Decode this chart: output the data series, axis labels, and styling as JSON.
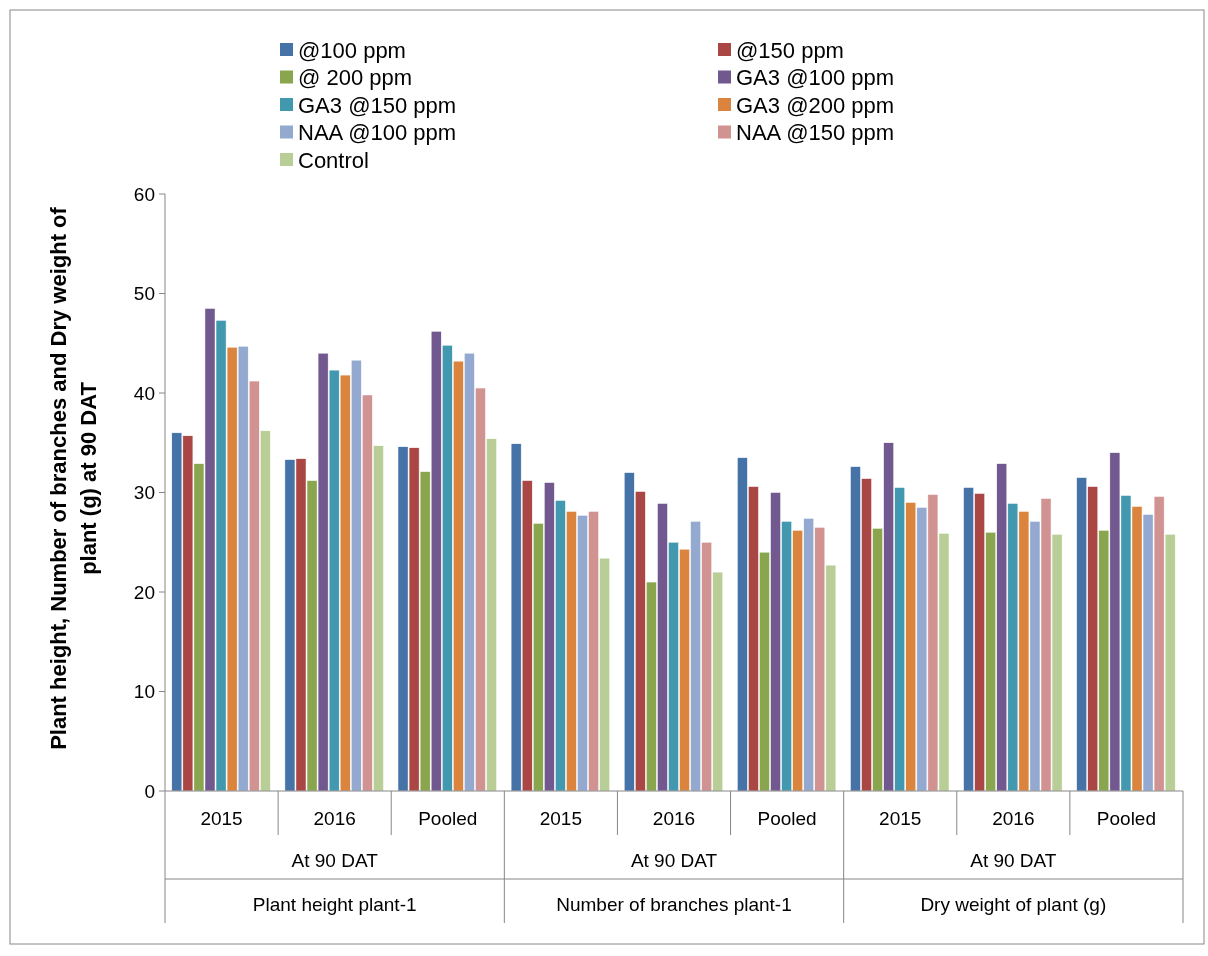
{
  "chart_data": {
    "type": "bar",
    "ylabel": "Plant height, Number of branches and Dry weight of plant (g) at 90 DAT",
    "categories": [
      "2015",
      "2016",
      "Pooled",
      "2015",
      "2016",
      "Pooled",
      "2015",
      "2016",
      "Pooled"
    ],
    "annotations": [
      "At 90 DAT",
      "At 90 DAT",
      "At 90 DAT",
      "Plant height plant-1",
      "Number of branches plant-1",
      "Dry weight of plant (g)"
    ],
    "ylim": [
      0,
      60
    ],
    "yticks": [
      0,
      10,
      20,
      30,
      40,
      50,
      60
    ],
    "legend": "top",
    "grid": false,
    "series": [
      {
        "name": "@100 ppm",
        "color": "#4572a7",
        "values": [
          36.0,
          33.3,
          34.6,
          34.9,
          32.0,
          33.5,
          32.6,
          30.5,
          31.5
        ]
      },
      {
        "name": "@150 ppm",
        "color": "#aa4643",
        "values": [
          35.7,
          33.4,
          34.5,
          31.2,
          30.1,
          30.6,
          31.4,
          29.9,
          30.6
        ]
      },
      {
        "name": "@ 200 ppm",
        "color": "#89a54e",
        "values": [
          32.9,
          31.2,
          32.1,
          26.9,
          21.0,
          24.0,
          26.4,
          26.0,
          26.2
        ]
      },
      {
        "name": "GA3 @100 ppm",
        "color": "#71588f",
        "values": [
          48.5,
          44.0,
          46.2,
          31.0,
          28.9,
          30.0,
          35.0,
          32.9,
          34.0
        ]
      },
      {
        "name": "GA3 @150 ppm",
        "color": "#4198af",
        "values": [
          47.3,
          42.3,
          44.8,
          29.2,
          25.0,
          27.1,
          30.5,
          28.9,
          29.7
        ]
      },
      {
        "name": "GA3 @200 ppm",
        "color": "#db843d",
        "values": [
          44.6,
          41.8,
          43.2,
          28.1,
          24.3,
          26.2,
          29.0,
          28.1,
          28.6
        ]
      },
      {
        "name": "NAA @100 ppm",
        "color": "#93a9cf",
        "values": [
          44.7,
          43.3,
          44.0,
          27.7,
          27.1,
          27.4,
          28.5,
          27.1,
          27.8
        ]
      },
      {
        "name": "NAA @150 ppm",
        "color": "#d19392",
        "values": [
          41.2,
          39.8,
          40.5,
          28.1,
          25.0,
          26.5,
          29.8,
          29.4,
          29.6
        ]
      },
      {
        "name": "Control",
        "color": "#b9cd96",
        "values": [
          36.2,
          34.7,
          35.4,
          23.4,
          22.0,
          22.7,
          25.9,
          25.8,
          25.8
        ]
      }
    ]
  }
}
